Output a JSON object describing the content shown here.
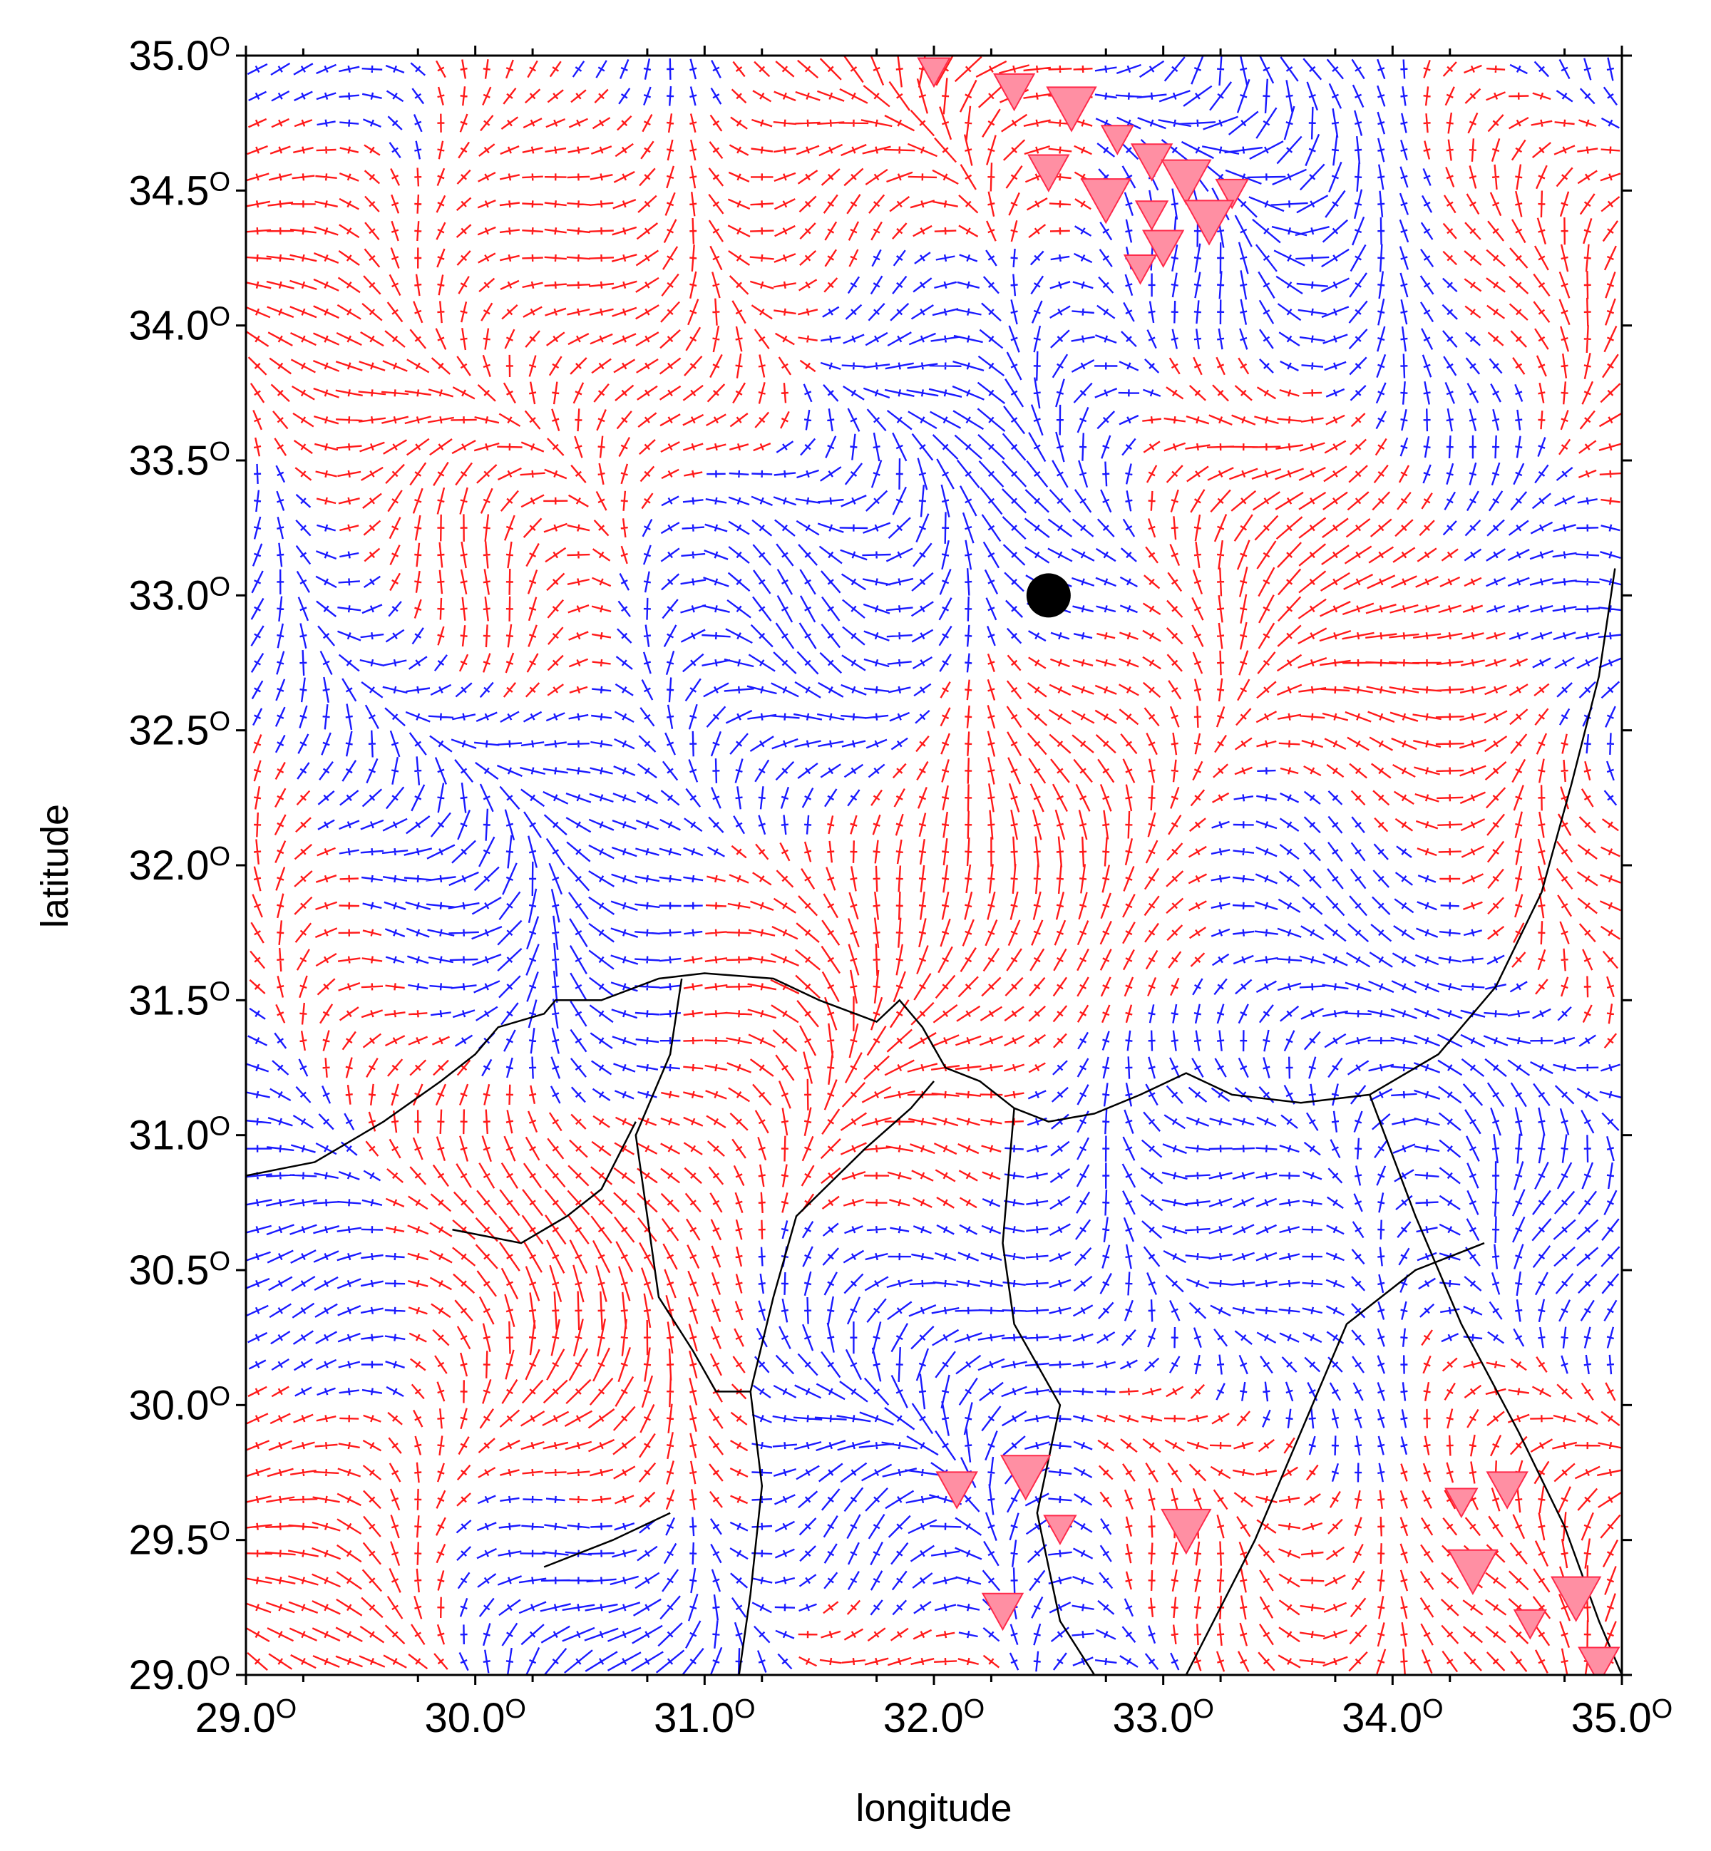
{
  "map": {
    "xlabel": "longitude",
    "ylabel": "latitude",
    "xlim": [
      29.0,
      35.0
    ],
    "ylim": [
      29.0,
      35.0
    ],
    "x_ticks": [
      "29.0",
      "30.0",
      "31.0",
      "32.0",
      "33.0",
      "34.0",
      "35.0"
    ],
    "y_ticks": [
      "29.0",
      "29.5",
      "30.0",
      "30.5",
      "31.0",
      "31.5",
      "32.0",
      "32.5",
      "33.0",
      "33.5",
      "34.0",
      "34.5",
      "35.0"
    ],
    "degree_mark": "O",
    "colors": {
      "vector_positive": "#ff1a1a",
      "vector_negative": "#1a1aff",
      "source_marker": "#ff8fa3",
      "coastline": "#000000",
      "station": "#000000"
    },
    "station": {
      "lon": 32.5,
      "lat": 33.0
    },
    "marker_icon": "inverted-triangle"
  }
}
